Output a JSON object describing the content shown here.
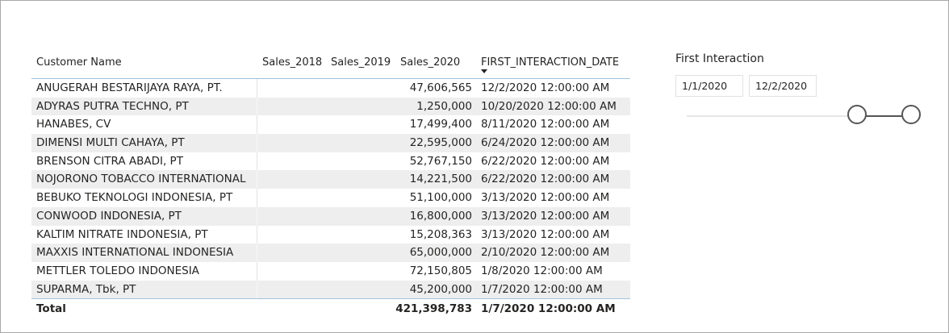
{
  "table": {
    "headers": {
      "customer_name": "Customer Name",
      "sales_2018": "Sales_2018",
      "sales_2019": "Sales_2019",
      "sales_2020": "Sales_2020",
      "first_interaction_date": "FIRST_INTERACTION_DATE"
    },
    "sort_icon": "sort-descending-icon",
    "rows": [
      {
        "name": "ANUGERAH BESTARIJAYA RAYA, PT.",
        "sales_2018": "",
        "sales_2019": "",
        "sales_2020": "47,606,565",
        "date": "12/2/2020 12:00:00 AM"
      },
      {
        "name": "ADYRAS PUTRA TECHNO, PT",
        "sales_2018": "",
        "sales_2019": "",
        "sales_2020": "1,250,000",
        "date": "10/20/2020 12:00:00 AM"
      },
      {
        "name": "HANABES, CV",
        "sales_2018": "",
        "sales_2019": "",
        "sales_2020": "17,499,400",
        "date": "8/11/2020 12:00:00 AM"
      },
      {
        "name": "DIMENSI MULTI CAHAYA, PT",
        "sales_2018": "",
        "sales_2019": "",
        "sales_2020": "22,595,000",
        "date": "6/24/2020 12:00:00 AM"
      },
      {
        "name": "BRENSON CITRA ABADI, PT",
        "sales_2018": "",
        "sales_2019": "",
        "sales_2020": "52,767,150",
        "date": "6/22/2020 12:00:00 AM"
      },
      {
        "name": "NOJORONO TOBACCO INTERNATIONAL",
        "sales_2018": "",
        "sales_2019": "",
        "sales_2020": "14,221,500",
        "date": "6/22/2020 12:00:00 AM"
      },
      {
        "name": "BEBUKO TEKNOLOGI INDONESIA, PT",
        "sales_2018": "",
        "sales_2019": "",
        "sales_2020": "51,100,000",
        "date": "3/13/2020 12:00:00 AM"
      },
      {
        "name": "CONWOOD INDONESIA, PT",
        "sales_2018": "",
        "sales_2019": "",
        "sales_2020": "16,800,000",
        "date": "3/13/2020 12:00:00 AM"
      },
      {
        "name": "KALTIM NITRATE INDONESIA, PT",
        "sales_2018": "",
        "sales_2019": "",
        "sales_2020": "15,208,363",
        "date": "3/13/2020 12:00:00 AM"
      },
      {
        "name": "MAXXIS INTERNATIONAL INDONESIA",
        "sales_2018": "",
        "sales_2019": "",
        "sales_2020": "65,000,000",
        "date": "2/10/2020 12:00:00 AM"
      },
      {
        "name": "METTLER TOLEDO INDONESIA",
        "sales_2018": "",
        "sales_2019": "",
        "sales_2020": "72,150,805",
        "date": "1/8/2020 12:00:00 AM"
      },
      {
        "name": "SUPARMA, Tbk, PT",
        "sales_2018": "",
        "sales_2019": "",
        "sales_2020": "45,200,000",
        "date": "1/7/2020 12:00:00 AM"
      }
    ],
    "total": {
      "label": "Total",
      "sales_2020": "421,398,783",
      "date": "1/7/2020 12:00:00 AM"
    }
  },
  "slicer": {
    "title": "First Interaction",
    "start_date": "1/1/2020",
    "end_date": "12/2/2020",
    "range_low_fraction": 0.76,
    "range_high_fraction": 1.0
  }
}
